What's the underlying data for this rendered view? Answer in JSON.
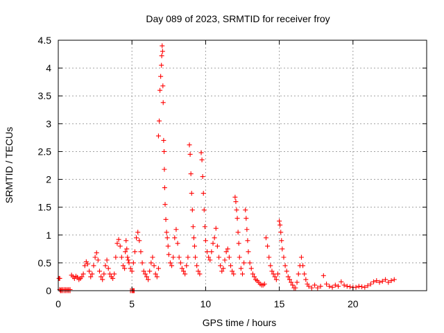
{
  "chart_data": {
    "type": "scatter",
    "title": "Day 089 of 2023, SRMTID for receiver froy",
    "xlabel": "GPS time / hours",
    "ylabel": "SRMTID / TECUs",
    "xlim": [
      0,
      25
    ],
    "ylim": [
      0,
      4.5
    ],
    "xticks": [
      0,
      5,
      10,
      15,
      20
    ],
    "xtick_labels": [
      "0",
      "5",
      "10",
      "15",
      "20"
    ],
    "yticks": [
      0,
      0.5,
      1,
      1.5,
      2,
      2.5,
      3,
      3.5,
      4,
      4.5
    ],
    "ytick_labels": [
      "0",
      "0.5",
      "1",
      "1.5",
      "2",
      "2.5",
      "3",
      "3.5",
      "4",
      "4.5"
    ],
    "grid": true,
    "marker": "+",
    "color": "#ff0000",
    "series": [
      {
        "name": "SRMTID",
        "x": [
          0.05,
          0.1,
          0.15,
          0.2,
          0.3,
          0.4,
          0.5,
          0.6,
          0.7,
          0.8,
          0.1,
          0.2,
          0.3,
          0.4,
          0.5,
          0.6,
          0.7,
          0.8,
          0.9,
          1.0,
          1.1,
          1.2,
          1.3,
          1.4,
          1.5,
          1.6,
          1.7,
          1.8,
          1.9,
          2.0,
          2.1,
          2.2,
          2.3,
          2.4,
          2.5,
          2.6,
          2.7,
          2.8,
          2.9,
          3.0,
          3.1,
          3.2,
          3.3,
          3.4,
          3.5,
          3.6,
          3.7,
          3.8,
          3.9,
          4.0,
          4.1,
          4.2,
          4.3,
          4.4,
          4.5,
          4.55,
          4.6,
          4.65,
          4.7,
          4.75,
          4.8,
          4.9,
          5.0,
          5.1,
          5.2,
          5.3,
          5.4,
          5.5,
          5.6,
          5.7,
          5.8,
          5.9,
          6.0,
          6.1,
          6.2,
          6.3,
          6.4,
          6.5,
          6.6,
          6.7,
          6.8,
          6.8,
          6.85,
          6.9,
          6.95,
          7.0,
          7.02,
          7.05,
          7.08,
          7.1,
          7.12,
          7.15,
          7.18,
          7.2,
          7.22,
          7.25,
          7.3,
          7.35,
          7.4,
          7.45,
          7.5,
          7.6,
          7.7,
          7.8,
          7.9,
          8.0,
          8.1,
          8.2,
          8.3,
          8.4,
          8.5,
          8.6,
          8.7,
          8.8,
          8.9,
          8.95,
          9.0,
          9.05,
          9.1,
          9.15,
          9.2,
          9.25,
          9.3,
          9.4,
          9.5,
          9.6,
          9.7,
          9.75,
          9.8,
          9.85,
          9.9,
          9.95,
          10.0,
          10.1,
          10.2,
          10.3,
          10.4,
          10.5,
          10.6,
          10.7,
          10.8,
          10.9,
          11.0,
          11.1,
          11.2,
          11.3,
          11.4,
          11.5,
          11.6,
          11.7,
          11.8,
          11.9,
          12.0,
          12.05,
          12.1,
          12.15,
          12.2,
          12.25,
          12.3,
          12.4,
          12.5,
          12.6,
          12.7,
          12.75,
          12.8,
          12.85,
          12.9,
          13.0,
          13.1,
          13.2,
          13.3,
          13.4,
          13.5,
          13.6,
          13.7,
          13.8,
          13.9,
          14.0,
          14.1,
          14.2,
          14.3,
          14.4,
          14.5,
          14.6,
          14.7,
          14.8,
          14.9,
          15.0,
          15.05,
          15.1,
          15.15,
          15.2,
          15.3,
          15.4,
          15.5,
          15.6,
          15.7,
          15.8,
          15.9,
          16.0,
          16.1,
          16.2,
          16.3,
          16.4,
          16.5,
          16.6,
          16.7,
          16.8,
          16.9,
          17.0,
          17.2,
          17.4,
          17.6,
          17.8,
          18.0,
          18.2,
          18.4,
          18.6,
          18.8,
          19.0,
          19.2,
          19.4,
          19.6,
          19.8,
          20.0,
          20.2,
          20.4,
          20.6,
          20.8,
          21.0,
          21.2,
          21.4,
          21.6,
          21.8,
          22.0,
          22.2,
          22.4,
          22.6,
          22.8,
          4.9,
          5.0,
          5.05,
          5.1,
          5.15
        ],
        "y": [
          0.22,
          0.22,
          0.0,
          0.0,
          0.0,
          0.0,
          0.0,
          0.0,
          0.0,
          0.0,
          0.02,
          0.02,
          0.02,
          0.02,
          0.02,
          0.02,
          0.02,
          0.02,
          0.28,
          0.25,
          0.22,
          0.26,
          0.24,
          0.2,
          0.22,
          0.25,
          0.3,
          0.45,
          0.52,
          0.48,
          0.35,
          0.25,
          0.3,
          0.45,
          0.6,
          0.68,
          0.55,
          0.35,
          0.25,
          0.2,
          0.3,
          0.45,
          0.55,
          0.4,
          0.3,
          0.25,
          0.22,
          0.3,
          0.6,
          0.85,
          0.92,
          0.8,
          0.6,
          0.45,
          0.4,
          0.7,
          0.9,
          0.75,
          0.6,
          0.55,
          0.5,
          0.4,
          0.35,
          0.5,
          0.7,
          0.95,
          1.05,
          0.9,
          0.7,
          0.5,
          0.35,
          0.3,
          0.25,
          0.2,
          0.35,
          0.5,
          0.6,
          0.45,
          0.3,
          0.25,
          0.4,
          2.78,
          3.05,
          3.6,
          3.85,
          4.05,
          4.22,
          4.4,
          4.3,
          3.68,
          3.38,
          2.7,
          2.5,
          2.18,
          1.85,
          1.55,
          1.28,
          1.05,
          0.95,
          0.8,
          0.65,
          0.5,
          0.45,
          0.6,
          0.95,
          1.1,
          0.85,
          0.6,
          0.5,
          0.4,
          0.35,
          0.3,
          0.45,
          0.6,
          2.62,
          2.45,
          2.1,
          1.75,
          1.45,
          1.15,
          0.95,
          0.8,
          0.6,
          0.45,
          0.35,
          0.3,
          2.48,
          2.35,
          2.05,
          1.75,
          1.45,
          1.15,
          0.9,
          0.7,
          0.6,
          0.55,
          0.7,
          0.85,
          0.95,
          1.12,
          0.8,
          0.6,
          0.45,
          0.35,
          0.4,
          0.55,
          0.7,
          0.75,
          0.6,
          0.45,
          0.35,
          0.3,
          1.68,
          1.6,
          1.45,
          1.3,
          1.05,
          0.85,
          0.6,
          0.4,
          0.3,
          0.5,
          1.45,
          1.3,
          1.1,
          0.9,
          0.7,
          0.5,
          0.4,
          0.3,
          0.25,
          0.2,
          0.18,
          0.15,
          0.12,
          0.1,
          0.1,
          0.12,
          0.95,
          0.8,
          0.6,
          0.45,
          0.35,
          0.3,
          0.25,
          0.2,
          0.3,
          1.25,
          1.18,
          1.05,
          0.9,
          0.75,
          0.6,
          0.45,
          0.35,
          0.25,
          0.2,
          0.15,
          0.1,
          0.05,
          0.05,
          0.15,
          0.3,
          0.45,
          0.6,
          0.45,
          0.3,
          0.2,
          0.12,
          0.08,
          0.05,
          0.1,
          0.05,
          0.08,
          0.27,
          0.12,
          0.08,
          0.06,
          0.1,
          0.08,
          0.16,
          0.1,
          0.08,
          0.07,
          0.06,
          0.06,
          0.08,
          0.07,
          0.06,
          0.09,
          0.12,
          0.16,
          0.18,
          0.15,
          0.17,
          0.2,
          0.15,
          0.18,
          0.2,
          0.0,
          0.0,
          0.0,
          0.0,
          0.0
        ]
      }
    ]
  }
}
